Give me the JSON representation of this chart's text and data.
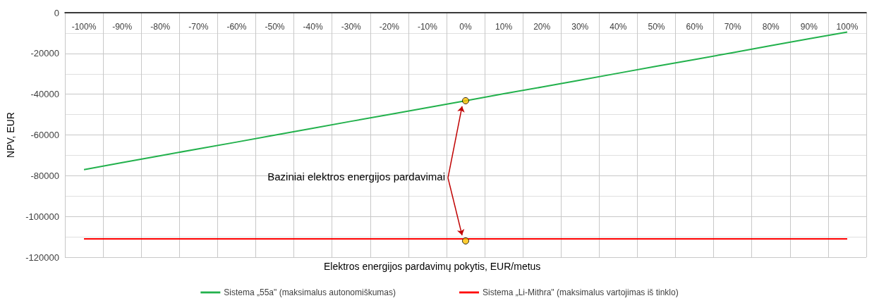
{
  "chart_data": {
    "type": "line",
    "xlabel": "Elektros energijos pardavimų pokytis, EUR/metus",
    "ylabel": "NPV, EUR",
    "categories": [
      "-100%",
      "-90%",
      "-80%",
      "-70%",
      "-60%",
      "-50%",
      "-40%",
      "-30%",
      "-20%",
      "-10%",
      "0%",
      "10%",
      "20%",
      "30%",
      "40%",
      "50%",
      "60%",
      "70%",
      "80%",
      "90%",
      "100%"
    ],
    "series": [
      {
        "name": "Sistema „55a\" (maksimalus autonomiškumas)",
        "color": "#22b14c",
        "values": [
          -77000,
          -73600,
          -70200,
          -66800,
          -63500,
          -60100,
          -56700,
          -53300,
          -50000,
          -46600,
          -43200,
          -39800,
          -36500,
          -33100,
          -29700,
          -26300,
          -23000,
          -19600,
          -16200,
          -12800,
          -9500
        ]
      },
      {
        "name": "Sistema „Li-Mithra\" (maksimalus vartojimas iš tinklo)",
        "color": "#ff0000",
        "values": [
          -111000,
          -111000,
          -111000,
          -111000,
          -111000,
          -111000,
          -111000,
          -111000,
          -111000,
          -111000,
          -111000,
          -111000,
          -111000,
          -111000,
          -111000,
          -111000,
          -111000,
          -111000,
          -111000,
          -111000,
          -111000
        ]
      },
      {
        "type": "scatter",
        "marker": "circle",
        "color": "#ffc000",
        "x": [
          "0%",
          "0%"
        ],
        "values": [
          -43200,
          -112000
        ]
      }
    ],
    "annotations": [
      "Baziniai elektros energijos pardavimai"
    ],
    "ylim": [
      -120000,
      0
    ],
    "yticks": [
      -120000,
      -100000,
      -80000,
      -60000,
      -40000,
      -20000,
      0
    ],
    "grid": true,
    "legend": "bottom",
    "marker": "none",
    "line_style": "solid"
  }
}
